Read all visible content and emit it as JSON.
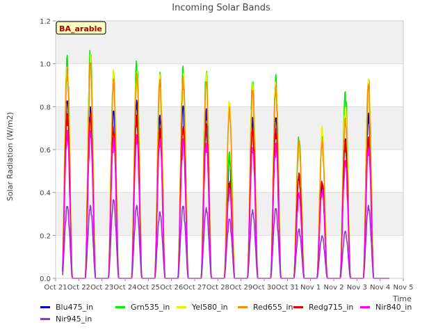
{
  "chart_data": {
    "type": "line",
    "title": "Incoming Solar Bands",
    "xlabel": "Time",
    "ylabel": "Solar Radiation (W/m2)",
    "ylim": [
      0.0,
      1.2
    ],
    "yticks": [
      "0.0",
      "0.2",
      "0.4",
      "0.6",
      "0.8",
      "1.0",
      "1.2"
    ],
    "xticks": [
      "Oct 21",
      "Oct 22",
      "Oct 23",
      "Oct 24",
      "Oct 25",
      "Oct 26",
      "Oct 27",
      "Oct 28",
      "Oct 29",
      "Oct 30",
      "Oct 31",
      "Nov 1",
      "Nov 2",
      "Nov 3",
      "Nov 4",
      "Nov 5"
    ],
    "x_range_days": [
      0,
      15
    ],
    "data_start_day": 0.3,
    "data_end_day": 14.4,
    "site_label": "BA_arable",
    "grid": true,
    "shaded_bands": true,
    "legend_position": "bottom",
    "days": [
      "Oct 21",
      "Oct 22",
      "Oct 23",
      "Oct 24",
      "Oct 25",
      "Oct 26",
      "Oct 27",
      "Oct 28",
      "Oct 29",
      "Oct 30",
      "Oct 31",
      "Nov 1",
      "Nov 2",
      "Nov 3",
      "Nov 4"
    ],
    "series": [
      {
        "name": "Blu475_in",
        "color": "#0000cc",
        "daily_peak": [
          0.84,
          0.8,
          0.79,
          0.83,
          0.76,
          0.81,
          0.79,
          0.56,
          0.75,
          0.76,
          0.49,
          0.45,
          0.65,
          0.77,
          0.0
        ]
      },
      {
        "name": "Grn535_in",
        "color": "#00ee00",
        "daily_peak": [
          1.04,
          1.08,
          0.96,
          1.03,
          0.96,
          0.99,
          0.98,
          0.59,
          0.93,
          0.95,
          0.67,
          0.66,
          0.88,
          0.94,
          0.0
        ]
      },
      {
        "name": "Yel580_in",
        "color": "#eeee00",
        "daily_peak": [
          1.0,
          1.04,
          0.98,
          0.98,
          0.95,
          0.97,
          0.96,
          0.84,
          0.91,
          0.93,
          0.63,
          0.71,
          0.81,
          0.93,
          0.0
        ]
      },
      {
        "name": "Red655_in",
        "color": "#ff8c00",
        "daily_peak": [
          0.98,
          1.02,
          0.93,
          0.96,
          0.93,
          0.94,
          0.93,
          0.8,
          0.89,
          0.9,
          0.65,
          0.64,
          0.75,
          0.91,
          0.0
        ]
      },
      {
        "name": "Redg715_in",
        "color": "#dd0000",
        "daily_peak": [
          0.78,
          0.77,
          0.72,
          0.76,
          0.7,
          0.72,
          0.72,
          0.46,
          0.7,
          0.71,
          0.49,
          0.46,
          0.64,
          0.66,
          0.0
        ]
      },
      {
        "name": "Nir840_in",
        "color": "#ff00ff",
        "daily_peak": [
          0.69,
          0.7,
          0.66,
          0.67,
          0.66,
          0.65,
          0.64,
          0.42,
          0.62,
          0.63,
          0.4,
          0.42,
          0.55,
          0.62,
          0.0
        ]
      },
      {
        "name": "Nir945_in",
        "color": "#9933cc",
        "daily_peak": [
          0.34,
          0.34,
          0.37,
          0.34,
          0.31,
          0.34,
          0.33,
          0.28,
          0.32,
          0.33,
          0.23,
          0.2,
          0.22,
          0.34,
          0.0
        ]
      }
    ]
  }
}
